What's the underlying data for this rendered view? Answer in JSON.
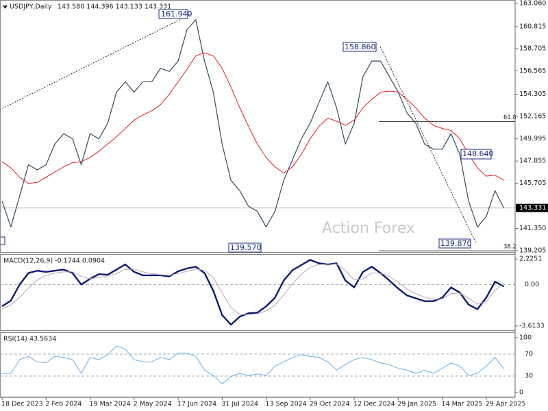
{
  "chart_data": [
    {
      "type": "line",
      "title": "USDJPY,Daily",
      "subtitle": "143.580 144.396 143.133 143.331",
      "watermark": "Action Forex",
      "categories": [
        "18 Dec 2023",
        null,
        null,
        null,
        null,
        "2 Feb 2024",
        null,
        null,
        null,
        null,
        "19 Mar 2024",
        null,
        null,
        null,
        null,
        "2 May 2024",
        null,
        null,
        null,
        null,
        "17 Jun 2024",
        null,
        null,
        null,
        null,
        "31 Jul 2024",
        null,
        null,
        null,
        null,
        "13 Sep 2024",
        null,
        null,
        null,
        null,
        "29 Oct 2024",
        null,
        null,
        null,
        null,
        "12 Dec 2024",
        null,
        null,
        null,
        null,
        "29 Jan 2025",
        null,
        null,
        null,
        null,
        "14 Mar 2025",
        null,
        null,
        null,
        null,
        "29 Apr 2025",
        null,
        null
      ],
      "series": [
        {
          "name": "USDJPY",
          "color": "#34495e",
          "width": 1.2,
          "values": [
            144.0,
            141.5,
            144.5,
            147.5,
            147.0,
            147.5,
            149.5,
            150.5,
            150.0,
            147.5,
            150.5,
            150.0,
            151.5,
            154.5,
            155.5,
            154.5,
            155.5,
            155.5,
            156.8,
            156.5,
            157.5,
            160.5,
            161.5,
            157.5,
            154.5,
            149.5,
            146.0,
            145.0,
            143.5,
            143.0,
            141.5,
            143.0,
            146.0,
            148.0,
            150.0,
            151.5,
            153.5,
            155.5,
            153.0,
            149.5,
            151.5,
            156.0,
            157.5,
            157.5,
            156.0,
            154.5,
            152.5,
            151.5,
            149.5,
            149.0,
            149.0,
            150.5,
            148.5,
            144.0,
            141.5,
            142.5,
            145.0,
            143.331
          ]
        },
        {
          "name": "MA",
          "color": "#e02020",
          "width": 1,
          "values": [
            147.8,
            147.2,
            146.3,
            145.7,
            145.8,
            146.3,
            146.8,
            147.3,
            147.7,
            147.8,
            148.2,
            148.8,
            149.5,
            150.2,
            151.0,
            151.8,
            152.3,
            152.7,
            153.3,
            154.3,
            155.5,
            156.7,
            158.0,
            158.3,
            158.0,
            156.8,
            155.0,
            153.0,
            151.2,
            149.5,
            148.2,
            147.3,
            146.7,
            147.3,
            148.5,
            150.0,
            151.2,
            152.0,
            151.7,
            151.3,
            151.8,
            153.0,
            153.8,
            154.5,
            154.6,
            154.5,
            153.8,
            153.0,
            152.0,
            151.3,
            151.0,
            150.8,
            150.0,
            148.5,
            147.2,
            146.4,
            146.5,
            146.0
          ]
        }
      ],
      "ylim": [
        139.01,
        163.39
      ],
      "yticks": [
        {
          "value": 163.06,
          "label": "163.060"
        },
        160.815,
        158.705,
        156.565,
        154.305,
        152.165,
        149.995,
        147.855,
        145.705,
        {
          "value": 141.35,
          "label": "141.350"
        },
        139.205
      ],
      "price_line": {
        "value": 143.331,
        "label": "143.331"
      },
      "fib_levels": [
        {
          "value": 151.66,
          "label": "61.8"
        },
        {
          "value": 139.2,
          "label": "38.2"
        }
      ],
      "callouts": [
        "161.940",
        "158.860",
        "148.640",
        "139.870",
        "139.570"
      ]
    },
    {
      "type": "line",
      "title": "MACD(12,26,9) -0.1744 0.0904",
      "series": [
        {
          "name": "MACD",
          "color": "#0b1a6e",
          "width": 2.4,
          "values": [
            -1.9,
            -1.4,
            0,
            1.0,
            1.2,
            1.1,
            1.2,
            1.3,
            1.0,
            0,
            0.5,
            0.9,
            0.85,
            1.3,
            1.75,
            1.1,
            0.8,
            0.8,
            0.8,
            0.7,
            1.15,
            1.4,
            1.55,
            1.0,
            -0.55,
            -2.65,
            -3.5,
            -2.8,
            -2.5,
            -2.45,
            -1.9,
            -1.15,
            0.35,
            1.25,
            1.7,
            2.15,
            1.85,
            1.75,
            1.85,
            0.35,
            -0.25,
            1.1,
            1.55,
            1.0,
            0.35,
            -0.35,
            -0.95,
            -1.2,
            -1.45,
            -1.45,
            -1.15,
            -0.25,
            -0.7,
            -1.75,
            -2.15,
            -1.15,
            0.25,
            -0.1744
          ]
        },
        {
          "name": "Signal",
          "color": "#b8a4b4",
          "width": 1,
          "values": [
            -2.1,
            -1.8,
            -1.1,
            -0.3,
            0.4,
            0.8,
            1.0,
            1.1,
            1.1,
            0.7,
            0.5,
            0.6,
            0.75,
            0.95,
            1.3,
            1.35,
            1.1,
            0.95,
            0.85,
            0.8,
            0.95,
            1.15,
            1.35,
            1.25,
            0.6,
            -0.7,
            -2.0,
            -2.6,
            -2.6,
            -2.55,
            -2.3,
            -1.8,
            -0.9,
            0.1,
            0.9,
            1.5,
            1.75,
            1.75,
            1.8,
            1.2,
            0.4,
            0.5,
            1.0,
            1.0,
            0.7,
            0.2,
            -0.4,
            -0.8,
            -1.1,
            -1.3,
            -1.25,
            -0.8,
            -0.75,
            -1.2,
            -1.7,
            -1.5,
            -0.5,
            0.0904
          ]
        }
      ],
      "ylim": [
        -4.035,
        2.646
      ],
      "yticks": [
        2.2251,
        -3.6133
      ],
      "levels": [
        {
          "value": 0,
          "label": "0.00"
        }
      ]
    },
    {
      "type": "line",
      "title": "RSI(14) 43.5634",
      "series": [
        {
          "name": "RSI",
          "color": "#6aaee8",
          "width": 1,
          "values": [
            35,
            35,
            60,
            66,
            56,
            54,
            66,
            64,
            60,
            35,
            64,
            60,
            69,
            85,
            79,
            60,
            56,
            56,
            64,
            60,
            72,
            72,
            66,
            41,
            31,
            16,
            29,
            35,
            31,
            34,
            31,
            48,
            56,
            64,
            69,
            66,
            64,
            56,
            41,
            51,
            60,
            64,
            60,
            54,
            51,
            44,
            41,
            35,
            41,
            35,
            44,
            54,
            48,
            31,
            35,
            48,
            64,
            43.5634
          ]
        }
      ],
      "ylim": [
        -8.75,
        110
      ],
      "yticks": [
        100,
        0
      ],
      "levels": [
        70,
        30
      ]
    }
  ]
}
